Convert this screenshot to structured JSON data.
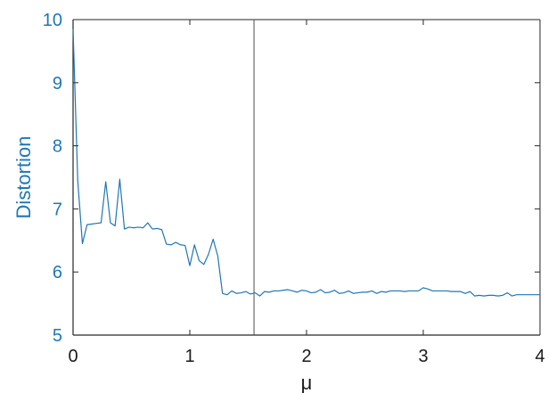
{
  "chart_data": {
    "type": "line",
    "title": "",
    "xlabel": "μ",
    "ylabel": "Distortion",
    "xlim": [
      0,
      4
    ],
    "ylim": [
      5,
      10
    ],
    "xticks": [
      0,
      1,
      2,
      3,
      4
    ],
    "yticks": [
      5,
      6,
      7,
      8,
      9,
      10
    ],
    "grid": false,
    "legend": "none",
    "vertical_line_x": 1.55,
    "colors": {
      "series": "#1f77b4",
      "axis": "#262626",
      "vline": "#4d4d4d",
      "ylabel": "#1f77b4"
    },
    "series": [
      {
        "x": [
          0.0,
          0.04,
          0.08,
          0.12,
          0.16,
          0.2,
          0.24,
          0.28,
          0.32,
          0.36,
          0.4,
          0.44,
          0.48,
          0.52,
          0.56,
          0.6,
          0.64,
          0.68,
          0.72,
          0.76,
          0.8,
          0.84,
          0.88,
          0.92,
          0.96,
          1.0,
          1.04,
          1.08,
          1.12,
          1.16,
          1.2,
          1.24,
          1.28,
          1.32,
          1.36,
          1.4,
          1.44,
          1.48,
          1.52,
          1.56,
          1.6,
          1.64,
          1.68,
          1.72,
          1.76,
          1.8,
          1.84,
          1.88,
          1.92,
          1.96,
          2.0,
          2.04,
          2.08,
          2.12,
          2.16,
          2.2,
          2.24,
          2.28,
          2.32,
          2.36,
          2.4,
          2.44,
          2.48,
          2.52,
          2.56,
          2.6,
          2.64,
          2.68,
          2.72,
          2.76,
          2.8,
          2.84,
          2.88,
          2.92,
          2.96,
          3.0,
          3.04,
          3.08,
          3.12,
          3.16,
          3.2,
          3.24,
          3.28,
          3.32,
          3.36,
          3.4,
          3.44,
          3.48,
          3.52,
          3.56,
          3.6,
          3.64,
          3.68,
          3.72,
          3.76,
          3.8,
          3.84,
          3.88,
          3.92,
          3.96,
          4.0
        ],
        "y": [
          9.85,
          7.45,
          6.45,
          6.75,
          6.76,
          6.77,
          6.78,
          7.43,
          6.78,
          6.73,
          7.47,
          6.68,
          6.71,
          6.7,
          6.71,
          6.7,
          6.78,
          6.68,
          6.69,
          6.67,
          6.44,
          6.43,
          6.47,
          6.43,
          6.42,
          6.1,
          6.43,
          6.18,
          6.12,
          6.28,
          6.52,
          6.25,
          5.66,
          5.64,
          5.7,
          5.66,
          5.67,
          5.69,
          5.65,
          5.67,
          5.62,
          5.69,
          5.68,
          5.7,
          5.7,
          5.71,
          5.72,
          5.7,
          5.68,
          5.71,
          5.7,
          5.67,
          5.68,
          5.72,
          5.67,
          5.68,
          5.71,
          5.66,
          5.67,
          5.7,
          5.66,
          5.67,
          5.68,
          5.68,
          5.7,
          5.66,
          5.69,
          5.68,
          5.7,
          5.7,
          5.7,
          5.69,
          5.7,
          5.7,
          5.7,
          5.75,
          5.73,
          5.7,
          5.7,
          5.7,
          5.7,
          5.69,
          5.69,
          5.69,
          5.66,
          5.69,
          5.62,
          5.63,
          5.62,
          5.63,
          5.63,
          5.62,
          5.63,
          5.67,
          5.62,
          5.64,
          5.64,
          5.64,
          5.64,
          5.64,
          5.64
        ]
      }
    ]
  }
}
